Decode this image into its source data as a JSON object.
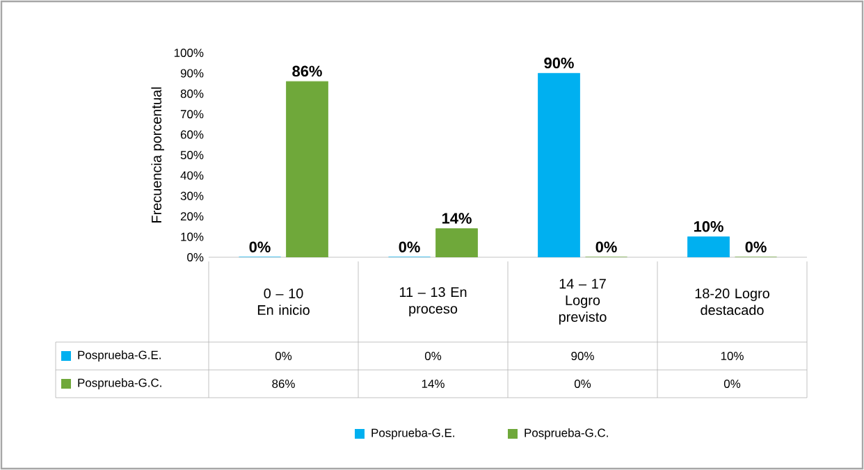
{
  "chart_data": {
    "type": "bar",
    "ylabel": "Frecuencia porcentual",
    "categories": [
      "0 – 10 En inicio",
      "11 – 13 En proceso",
      "14 – 17 Logro previsto",
      "18-20 Logro destacado"
    ],
    "series": [
      {
        "name": "Posprueba-G.E.",
        "color": "#00b0f0",
        "values": [
          0,
          0,
          90,
          10
        ],
        "value_labels": [
          "0%",
          "0%",
          "90%",
          "10%"
        ]
      },
      {
        "name": "Posprueba-G.C.",
        "color": "#6fa83a",
        "values": [
          86,
          14,
          0,
          0
        ],
        "value_labels": [
          "86%",
          "14%",
          "0%",
          "0%"
        ]
      }
    ],
    "ylim": [
      0,
      100
    ],
    "yticks": [
      {
        "value": 0,
        "label": "0%"
      },
      {
        "value": 10,
        "label": "10%"
      },
      {
        "value": 20,
        "label": "20%"
      },
      {
        "value": 30,
        "label": "30%"
      },
      {
        "value": 40,
        "label": "40%"
      },
      {
        "value": 50,
        "label": "50%"
      },
      {
        "value": 60,
        "label": "60%"
      },
      {
        "value": 70,
        "label": "70%"
      },
      {
        "value": 80,
        "label": "80%"
      },
      {
        "value": 90,
        "label": "90%"
      },
      {
        "value": 100,
        "label": "100%"
      }
    ],
    "legend": "bottom"
  }
}
